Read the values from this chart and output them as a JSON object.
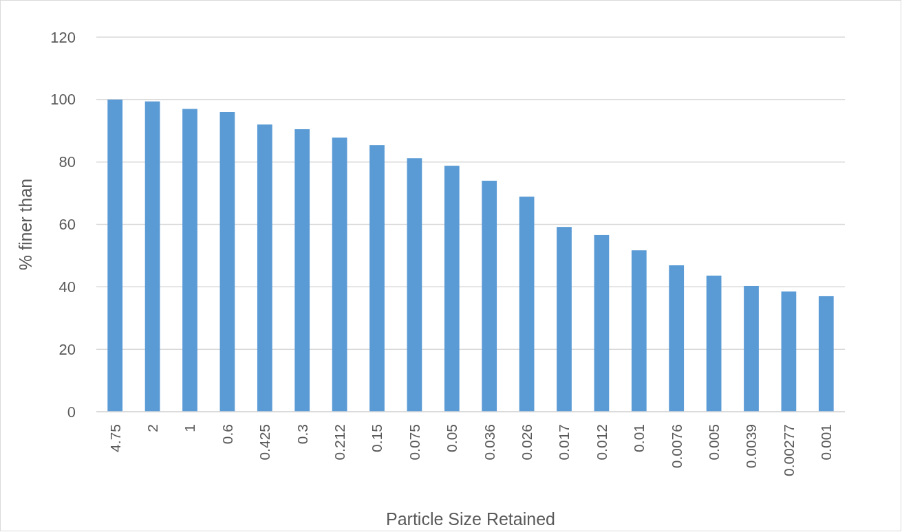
{
  "chart_data": {
    "type": "bar",
    "xlabel": "Particle  Size Retained",
    "ylabel": "% finer than",
    "categories": [
      "4.75",
      "2",
      "1",
      "0.6",
      "0.425",
      "0.3",
      "0.212",
      "0.15",
      "0.075",
      "0.05",
      "0.036",
      "0.026",
      "0.017",
      "0.012",
      "0.01",
      "0.0076",
      "0.005",
      "0.0039",
      "0.00277",
      "0.001"
    ],
    "values": [
      100,
      99.4,
      97,
      96,
      92,
      90.5,
      87.8,
      85.4,
      81.2,
      78.8,
      74,
      68.9,
      59.2,
      56.6,
      51.7,
      46.9,
      43.6,
      40.3,
      38.5,
      37
    ],
    "color": "#5b9bd5",
    "ylim": [
      0,
      120
    ],
    "yticks": [
      0,
      20,
      40,
      60,
      80,
      100,
      120
    ],
    "grid": "y"
  }
}
